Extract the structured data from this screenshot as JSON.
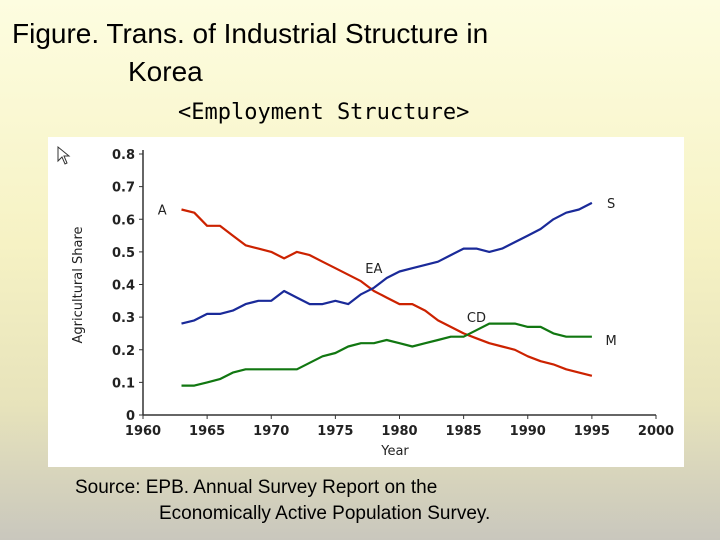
{
  "title": {
    "line1": "Figure. Trans. of Industrial Structure in",
    "line2": "Korea"
  },
  "subtitle": "<Employment Structure>",
  "source": {
    "line1": "Source: EPB. Annual Survey Report on the",
    "line2": "Economically Active Population Survey."
  },
  "chart_data": {
    "type": "line",
    "xlabel": "Year",
    "ylabel": "Agricultural Share",
    "xlim": [
      1960,
      2000
    ],
    "ylim": [
      0,
      0.8
    ],
    "x_ticks": [
      "1960",
      "1965",
      "1970",
      "1975",
      "1980",
      "1985",
      "1990",
      "1995",
      "2000"
    ],
    "y_ticks": [
      "0",
      "0.1",
      "0.2",
      "0.3",
      "0.4",
      "0.5",
      "0.6",
      "0.7",
      "0.8"
    ],
    "grid": false,
    "series": [
      {
        "name": "A",
        "color": "#cc2200",
        "x": [
          1963,
          1964,
          1965,
          1966,
          1967,
          1968,
          1969,
          1970,
          1971,
          1972,
          1973,
          1974,
          1975,
          1976,
          1977,
          1978,
          1979,
          1980,
          1981,
          1982,
          1983,
          1984,
          1985,
          1986,
          1987,
          1988,
          1989,
          1990,
          1991,
          1992,
          1993,
          1994,
          1995
        ],
        "y": [
          0.63,
          0.62,
          0.58,
          0.58,
          0.55,
          0.52,
          0.51,
          0.5,
          0.48,
          0.5,
          0.49,
          0.47,
          0.45,
          0.43,
          0.41,
          0.38,
          0.36,
          0.34,
          0.34,
          0.32,
          0.29,
          0.27,
          0.25,
          0.235,
          0.22,
          0.21,
          0.2,
          0.18,
          0.165,
          0.155,
          0.14,
          0.13,
          0.12
        ]
      },
      {
        "name": "S",
        "color": "#1a2a99",
        "x": [
          1963,
          1964,
          1965,
          1966,
          1967,
          1968,
          1969,
          1970,
          1971,
          1972,
          1973,
          1974,
          1975,
          1976,
          1977,
          1978,
          1979,
          1980,
          1981,
          1982,
          1983,
          1984,
          1985,
          1986,
          1987,
          1988,
          1989,
          1990,
          1991,
          1992,
          1993,
          1994,
          1995
        ],
        "y": [
          0.28,
          0.29,
          0.31,
          0.31,
          0.32,
          0.34,
          0.35,
          0.35,
          0.38,
          0.36,
          0.34,
          0.34,
          0.35,
          0.34,
          0.37,
          0.39,
          0.42,
          0.44,
          0.45,
          0.46,
          0.47,
          0.49,
          0.51,
          0.51,
          0.5,
          0.51,
          0.53,
          0.55,
          0.57,
          0.6,
          0.62,
          0.63,
          0.65
        ]
      },
      {
        "name": "M",
        "color": "#117711",
        "x": [
          1963,
          1964,
          1965,
          1966,
          1967,
          1968,
          1969,
          1970,
          1971,
          1972,
          1973,
          1974,
          1975,
          1976,
          1977,
          1978,
          1979,
          1980,
          1981,
          1982,
          1983,
          1984,
          1985,
          1986,
          1987,
          1988,
          1989,
          1990,
          1991,
          1992,
          1993,
          1994,
          1995
        ],
        "y": [
          0.09,
          0.09,
          0.1,
          0.11,
          0.13,
          0.14,
          0.14,
          0.14,
          0.14,
          0.14,
          0.16,
          0.18,
          0.19,
          0.21,
          0.22,
          0.22,
          0.23,
          0.22,
          0.21,
          0.22,
          0.23,
          0.24,
          0.24,
          0.26,
          0.28,
          0.28,
          0.28,
          0.27,
          0.27,
          0.25,
          0.24,
          0.24,
          0.24
        ]
      }
    ],
    "annotations": [
      {
        "text": "A",
        "x": 1961.5,
        "y": 0.63
      },
      {
        "text": "S",
        "x": 1996.5,
        "y": 0.65
      },
      {
        "text": "M",
        "x": 1996.5,
        "y": 0.23
      },
      {
        "text": "EA",
        "x": 1978,
        "y": 0.45
      },
      {
        "text": "CD",
        "x": 1986,
        "y": 0.3
      }
    ]
  }
}
